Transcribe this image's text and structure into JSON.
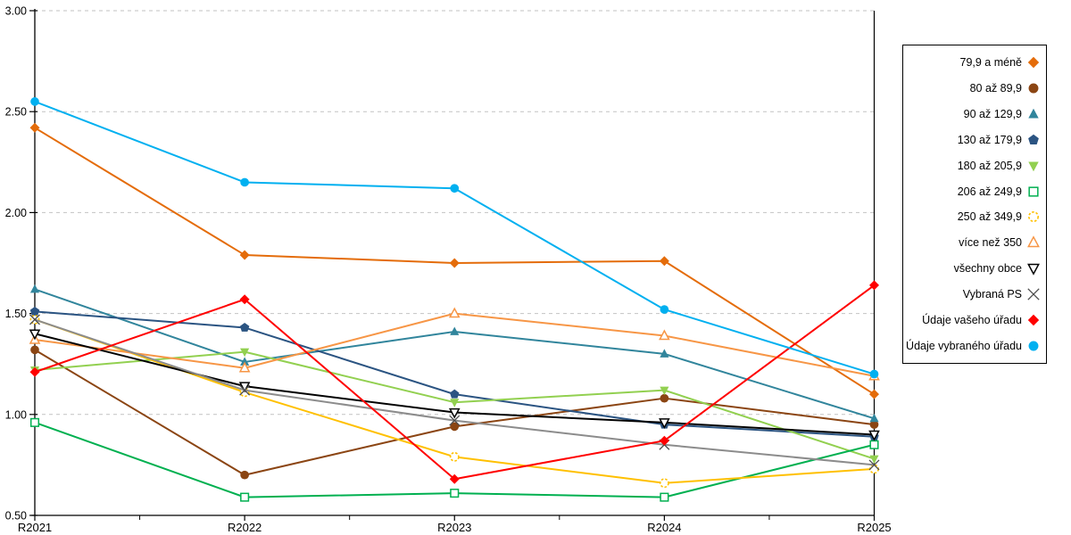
{
  "chart_data": {
    "type": "line",
    "title": "",
    "xlabel": "",
    "ylabel": "",
    "categories": [
      "R2021",
      "R2022",
      "R2023",
      "R2024",
      "R2025"
    ],
    "ylim": [
      0.5,
      3.0
    ],
    "y_ticks": [
      {
        "value": 0.5,
        "label": "0.50"
      },
      {
        "value": 1.0,
        "label": "1.00"
      },
      {
        "value": 1.5,
        "label": "1.50"
      },
      {
        "value": 2.0,
        "label": "2.00"
      },
      {
        "value": 2.5,
        "label": "2.50"
      },
      {
        "value": 3.0,
        "label": "3.00"
      }
    ],
    "grid": "horizontal-dashed",
    "grid_color": "#c2c2c2",
    "axis_color": "#000000",
    "legend_position": "right",
    "series": [
      {
        "name": "79,9 a méně",
        "color": "#E46C0A",
        "marker": "diamond",
        "values": [
          2.42,
          1.79,
          1.75,
          1.76,
          1.1
        ]
      },
      {
        "name": "80 až 89,9",
        "color": "#8B4513",
        "marker": "circle",
        "values": [
          1.32,
          0.7,
          0.94,
          1.08,
          0.95
        ]
      },
      {
        "name": "90 až 129,9",
        "color": "#31859C",
        "marker": "triangle-up",
        "values": [
          1.62,
          1.26,
          1.41,
          1.3,
          0.98
        ]
      },
      {
        "name": "130 až 179,9",
        "color": "#2B5482",
        "marker": "pentagon",
        "values": [
          1.51,
          1.43,
          1.1,
          0.95,
          0.89
        ]
      },
      {
        "name": "180 až 205,9",
        "color": "#92D050",
        "marker": "triangle-down",
        "values": [
          1.22,
          1.31,
          1.06,
          1.12,
          0.78
        ]
      },
      {
        "name": "206 až 249,9",
        "color": "#00B050",
        "marker": "square-open",
        "values": [
          0.96,
          0.59,
          0.61,
          0.59,
          0.85
        ]
      },
      {
        "name": "250 až 349,9",
        "color": "#FFC000",
        "marker": "circle-open-dashed",
        "values": [
          1.47,
          1.11,
          0.79,
          0.66,
          0.73
        ]
      },
      {
        "name": "více než 350",
        "color": "#F79646",
        "marker": "triangle-up-open",
        "values": [
          1.37,
          1.23,
          1.5,
          1.39,
          1.19
        ]
      },
      {
        "name": "všechny obce",
        "color": "#000000",
        "marker": "triangle-down-open",
        "values": [
          1.4,
          1.14,
          1.01,
          0.96,
          0.9
        ]
      },
      {
        "name": "Vybraná PS",
        "color": "#8C8C8C",
        "marker": "x",
        "marker_color": "#4D4D4D",
        "values": [
          1.47,
          1.12,
          0.97,
          0.85,
          0.75
        ]
      },
      {
        "name": "Údaje vašeho úřadu",
        "color": "#FF0000",
        "marker": "diamond",
        "values": [
          1.21,
          1.57,
          0.68,
          0.87,
          1.64
        ]
      },
      {
        "name": "Údaje vybraného úřadu",
        "color": "#00B0F0",
        "marker": "circle",
        "values": [
          2.55,
          2.15,
          2.12,
          1.52,
          1.2
        ]
      }
    ]
  }
}
